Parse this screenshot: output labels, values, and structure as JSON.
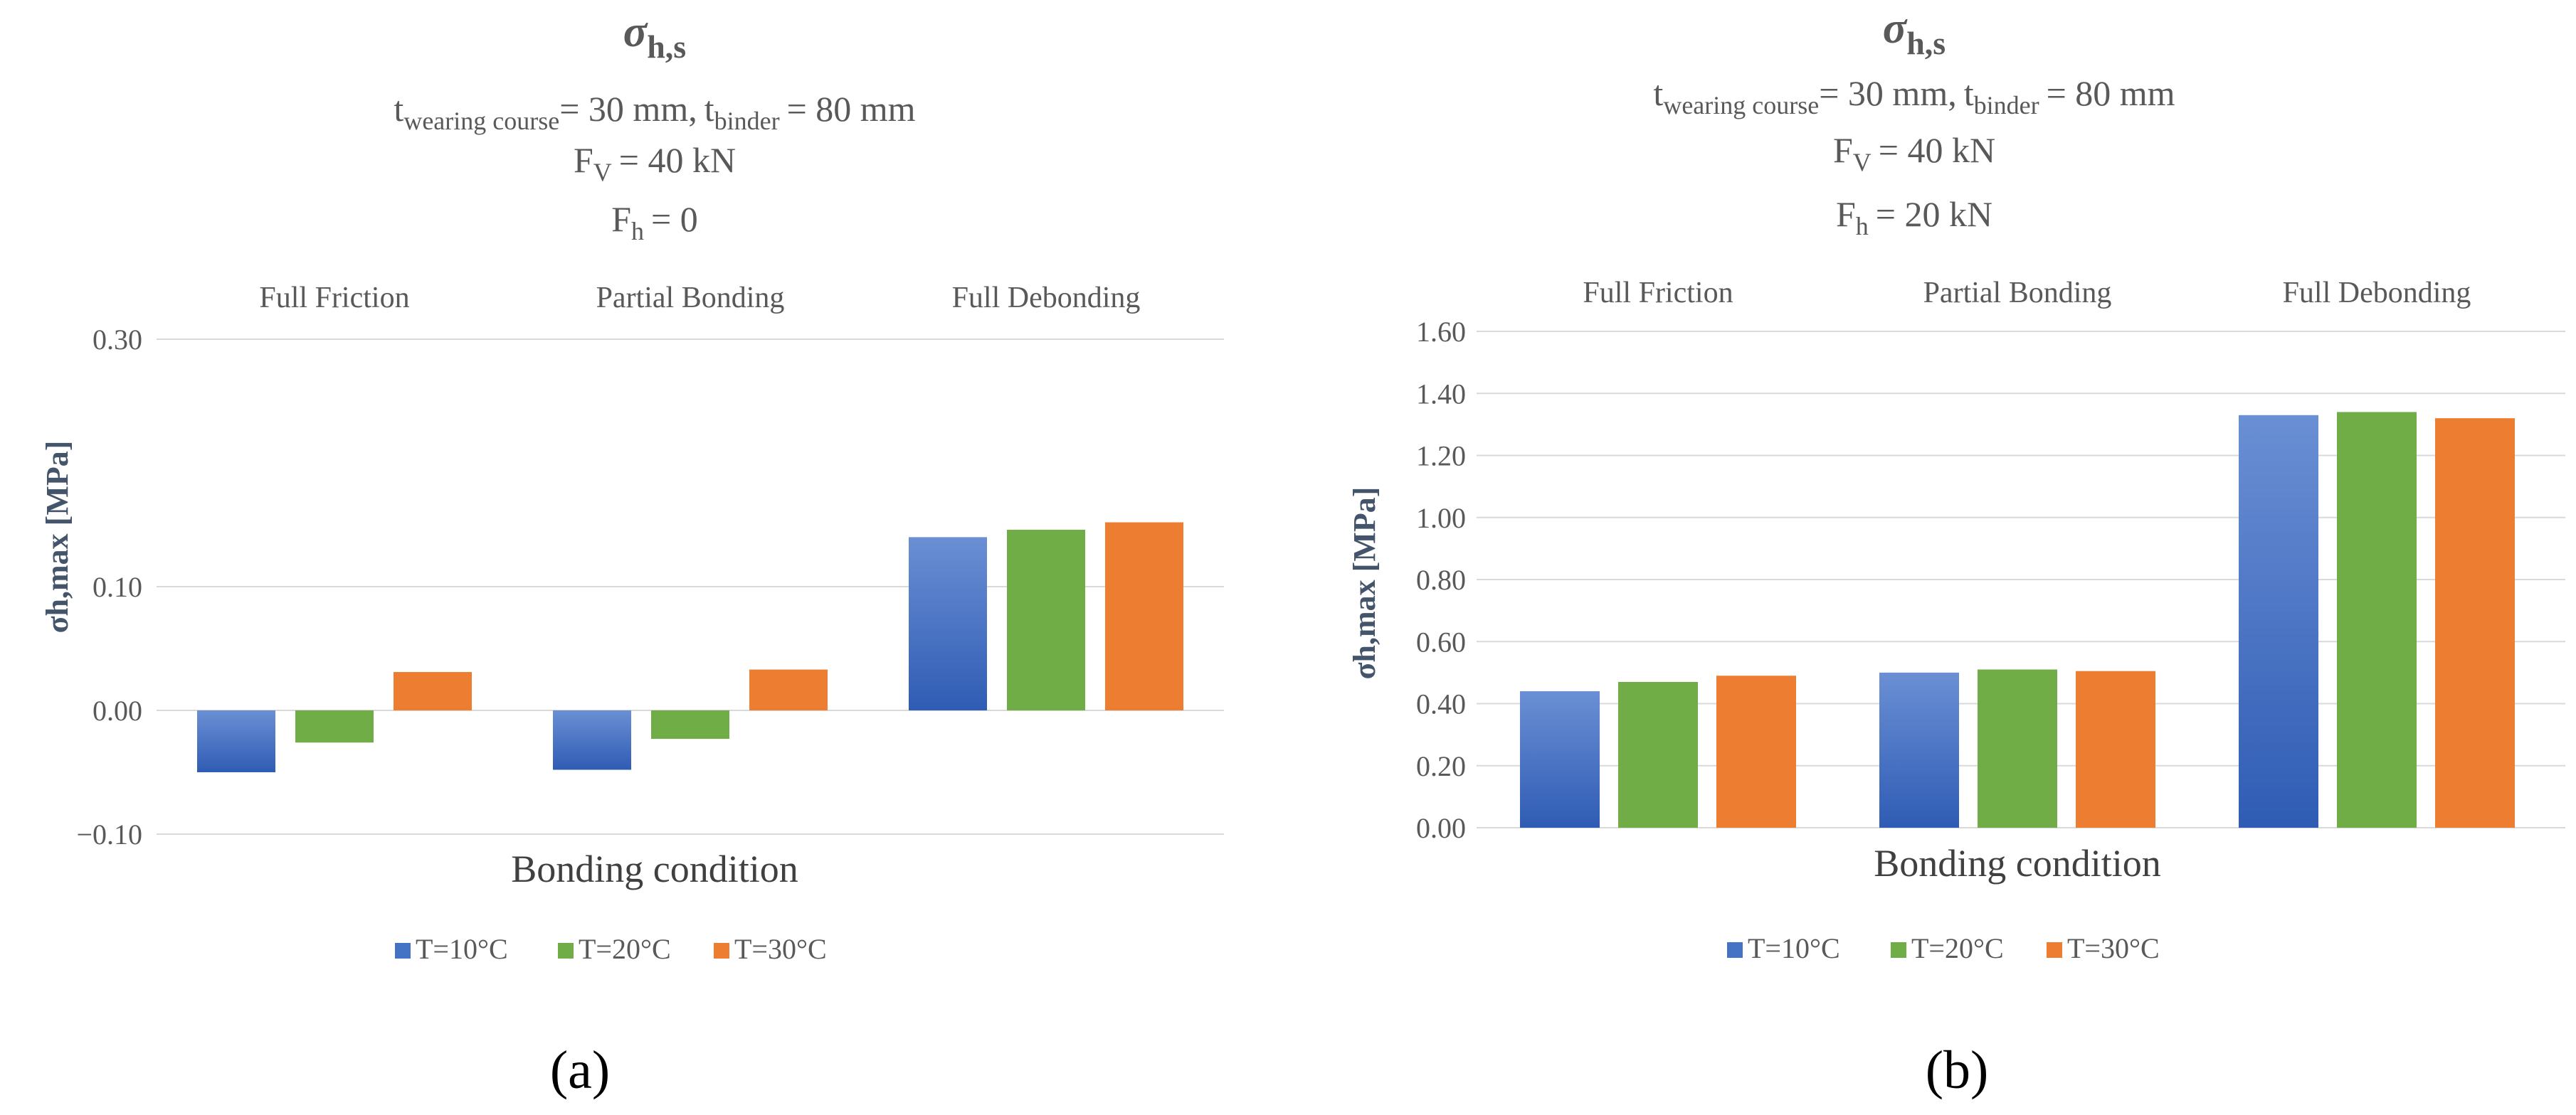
{
  "colors": {
    "series": [
      "#4472c4",
      "#70ad47",
      "#ed7d31"
    ],
    "series_dark": [
      "#2f5cb4",
      "#70ad47",
      "#ed7d31"
    ],
    "text": "#595959",
    "grid": "#d9d9d9",
    "ylabel": "#44546a"
  },
  "chart_data": [
    {
      "type": "bar",
      "panel_label": "(a)",
      "title_main": "σ",
      "title_sub": "h,s",
      "params": {
        "tw_main": "t",
        "tw_sub": "wearing course",
        "tw_val": "= 30 mm,",
        "tb_main": "t",
        "tb_sub": "binder",
        "tb_val": "= 80 mm",
        "fv_main": "F",
        "fv_sub": "V",
        "fv_val": "= 40 kN",
        "fh_main": "F",
        "fh_sub": "h",
        "fh_val": "= 0"
      },
      "categories": [
        "Full Friction",
        "Partial Bonding",
        "Full Debonding"
      ],
      "series": [
        {
          "name": "T=10°C",
          "values": [
            -0.05,
            -0.048,
            0.14
          ]
        },
        {
          "name": "T=20°C",
          "values": [
            -0.026,
            -0.023,
            0.146
          ]
        },
        {
          "name": "T=30°C",
          "values": [
            0.031,
            0.033,
            0.152
          ]
        }
      ],
      "yticks": [
        "−0.10",
        "0.00",
        "0.10",
        "0.30"
      ],
      "ytick_values": [
        -0.1,
        0.0,
        0.1,
        0.3
      ],
      "ylim": [
        -0.1,
        0.3
      ],
      "xlabel": "Bonding condition",
      "ylabel": "σh,max [MPa]"
    },
    {
      "type": "bar",
      "panel_label": "(b)",
      "title_main": "σ",
      "title_sub": "h,s",
      "params": {
        "tw_main": "t",
        "tw_sub": "wearing course",
        "tw_val": "= 30 mm,",
        "tb_main": "t",
        "tb_sub": "binder",
        "tb_val": "= 80 mm",
        "fv_main": "F",
        "fv_sub": "V",
        "fv_val": "= 40 kN",
        "fh_main": "F",
        "fh_sub": "h",
        "fh_val": "= 20 kN"
      },
      "categories": [
        "Full Friction",
        "Partial Bonding",
        "Full Debonding"
      ],
      "series": [
        {
          "name": "T=10°C",
          "values": [
            0.44,
            0.5,
            1.33
          ]
        },
        {
          "name": "T=20°C",
          "values": [
            0.47,
            0.51,
            1.34
          ]
        },
        {
          "name": "T=30°C",
          "values": [
            0.49,
            0.505,
            1.32
          ]
        }
      ],
      "yticks": [
        "0.00",
        "0.20",
        "0.40",
        "0.60",
        "0.80",
        "1.00",
        "1.20",
        "1.40",
        "1.60"
      ],
      "ytick_values": [
        0,
        0.2,
        0.4,
        0.6,
        0.8,
        1.0,
        1.2,
        1.4,
        1.6
      ],
      "ylim": [
        0,
        1.6
      ],
      "xlabel": "Bonding condition",
      "ylabel": "σh,max [MPa]"
    }
  ]
}
